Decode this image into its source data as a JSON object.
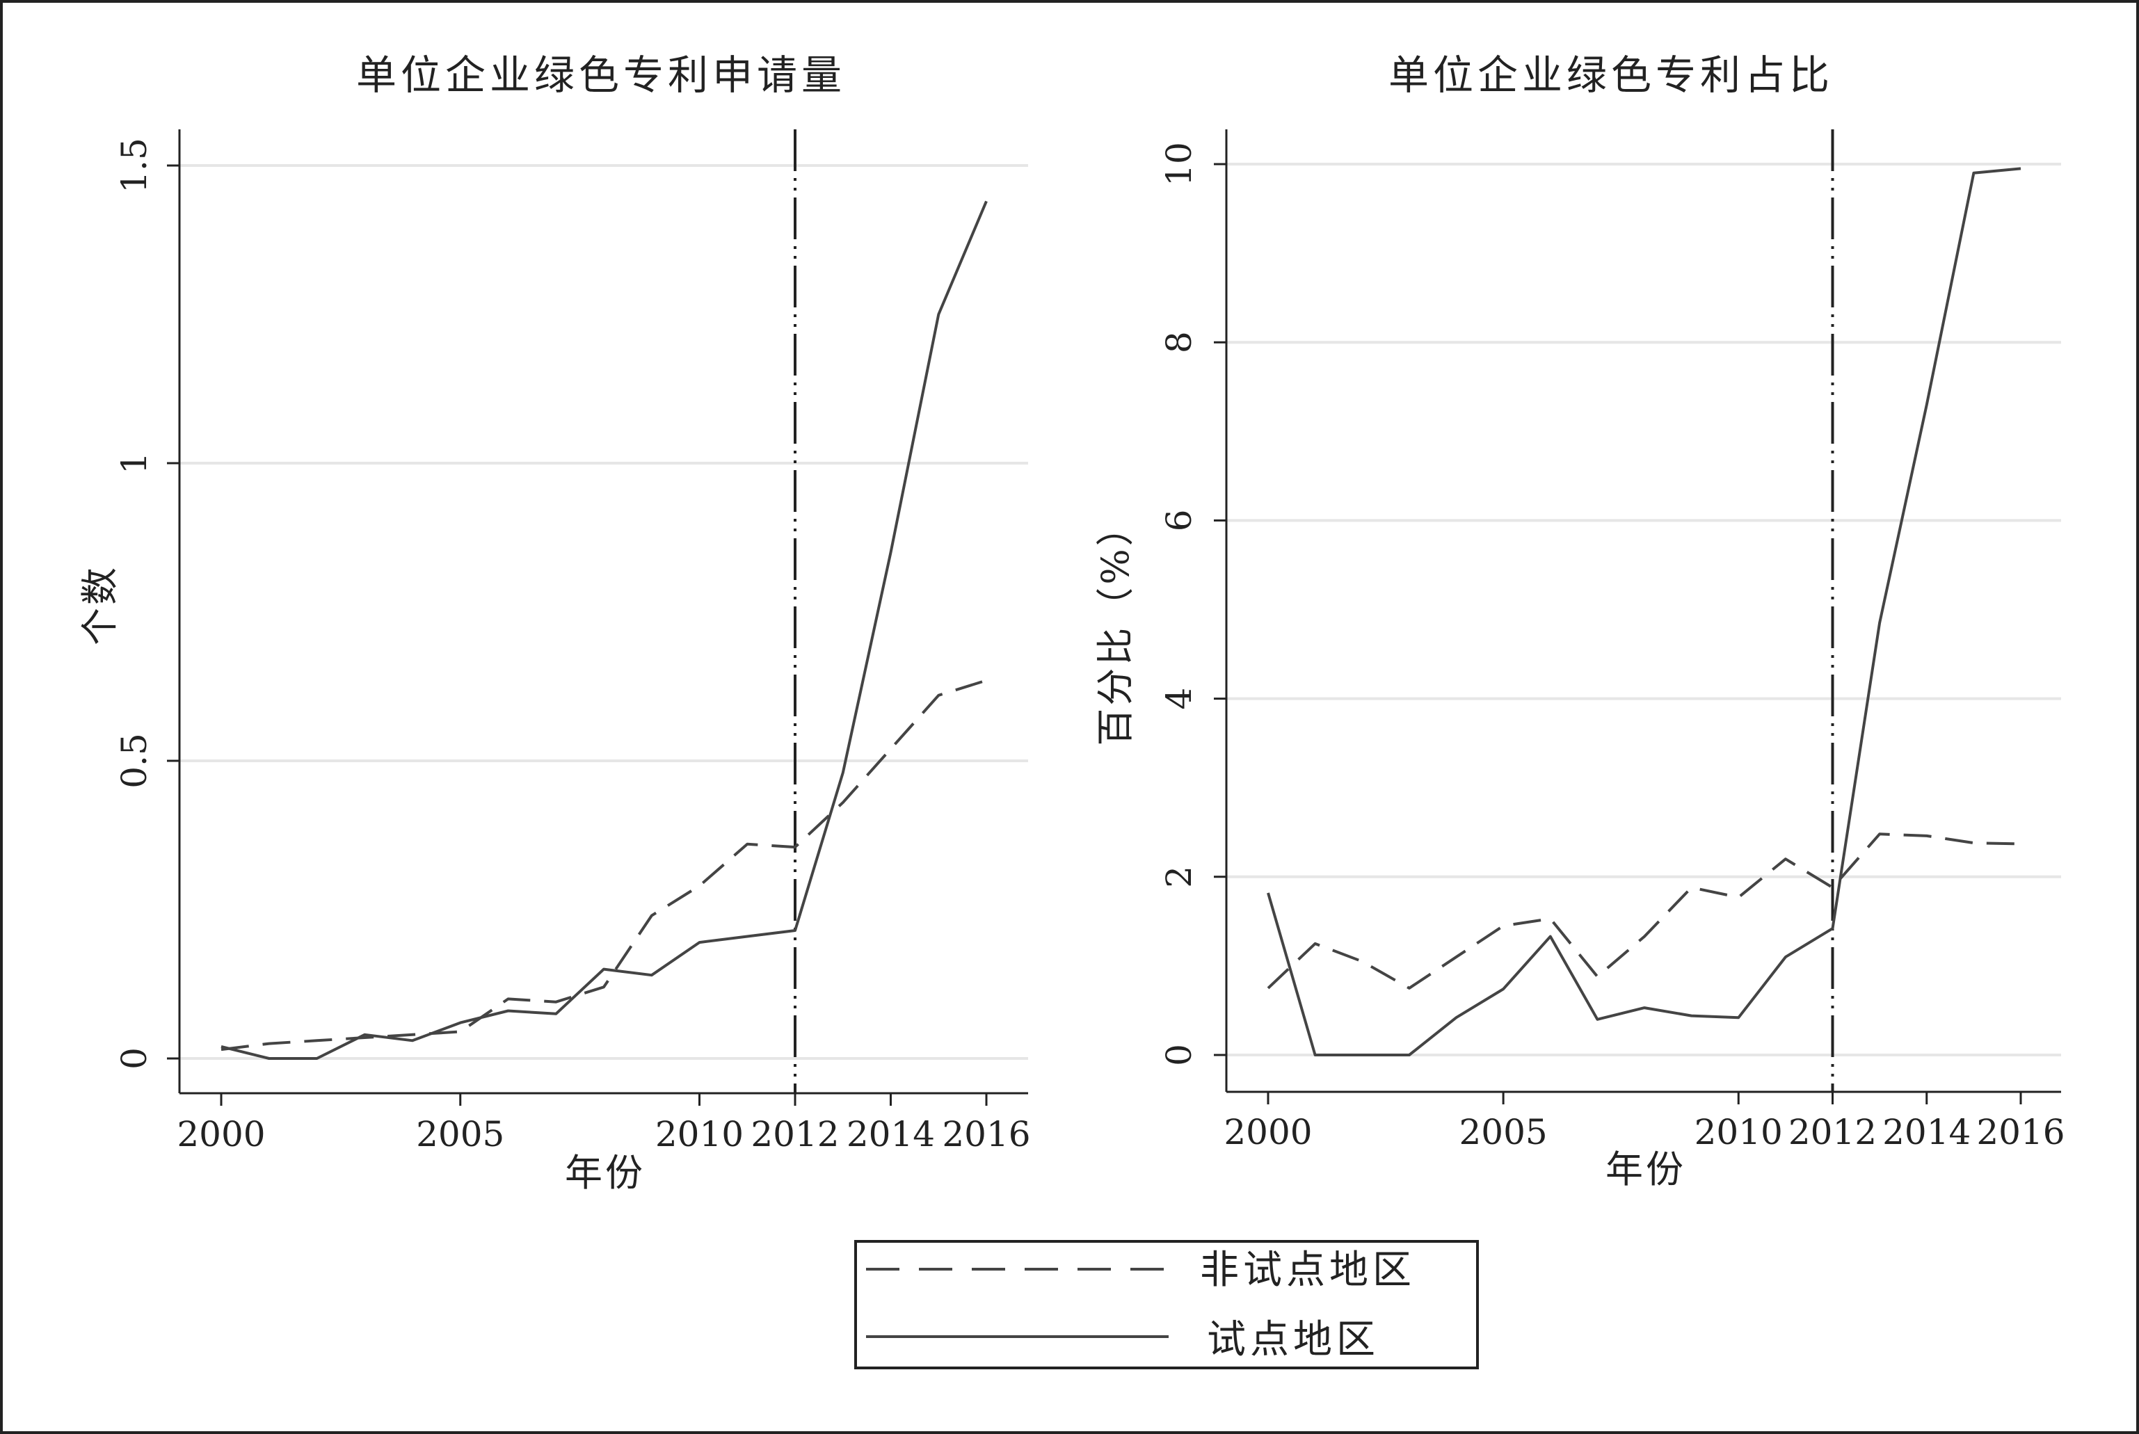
{
  "legend": {
    "items": [
      {
        "label": "非试点地区",
        "style": "dashed"
      },
      {
        "label": "试点地区",
        "style": "solid"
      }
    ]
  },
  "chart_data": [
    {
      "type": "line",
      "title": "单位企业绿色专利申请量",
      "xlabel": "年份",
      "ylabel": "个数",
      "xticks": [
        "2000",
        "2005",
        "2010",
        "2012",
        "2014",
        "2016"
      ],
      "yticks": [
        "0",
        "0.5",
        "1",
        "1.5"
      ],
      "xlim": [
        2000,
        2016
      ],
      "ylim": [
        0,
        1.5
      ],
      "vline": 2012,
      "grid": "horizontal",
      "series": [
        {
          "name": "非试点地区",
          "style": "dashed",
          "x": [
            2000,
            2001,
            2002,
            2003,
            2004,
            2005,
            2006,
            2007,
            2008,
            2009,
            2010,
            2011,
            2012,
            2013,
            2014,
            2015,
            2016
          ],
          "y": [
            0.015,
            0.025,
            0.03,
            0.035,
            0.04,
            0.045,
            0.1,
            0.095,
            0.12,
            0.24,
            0.29,
            0.36,
            0.355,
            0.43,
            0.52,
            0.61,
            0.635
          ]
        },
        {
          "name": "试点地区",
          "style": "solid",
          "x": [
            2000,
            2001,
            2002,
            2003,
            2004,
            2005,
            2006,
            2007,
            2008,
            2009,
            2010,
            2011,
            2012,
            2013,
            2014,
            2015,
            2016
          ],
          "y": [
            0.02,
            0.0,
            0.0,
            0.04,
            0.03,
            0.06,
            0.08,
            0.075,
            0.15,
            0.14,
            0.195,
            0.205,
            0.215,
            0.48,
            0.85,
            1.25,
            1.44
          ]
        }
      ]
    },
    {
      "type": "line",
      "title": "单位企业绿色专利占比",
      "xlabel": "年份",
      "ylabel": "百分比（%）",
      "xticks": [
        "2000",
        "2005",
        "2010",
        "2012",
        "2014",
        "2016"
      ],
      "yticks": [
        "0",
        "2",
        "4",
        "6",
        "8",
        "10"
      ],
      "xlim": [
        2000,
        2016
      ],
      "ylim": [
        0,
        10
      ],
      "vline": 2012,
      "grid": "horizontal",
      "series": [
        {
          "name": "非试点地区",
          "style": "dashed",
          "x": [
            2000,
            2001,
            2002,
            2003,
            2004,
            2005,
            2006,
            2007,
            2008,
            2009,
            2010,
            2011,
            2012,
            2013,
            2014,
            2015,
            2016
          ],
          "y": [
            0.75,
            1.25,
            1.05,
            0.75,
            1.1,
            1.45,
            1.53,
            0.88,
            1.33,
            1.88,
            1.77,
            2.2,
            1.88,
            2.48,
            2.46,
            2.38,
            2.37
          ]
        },
        {
          "name": "试点地区",
          "style": "solid",
          "x": [
            2000,
            2001,
            2002,
            2003,
            2004,
            2005,
            2006,
            2007,
            2008,
            2009,
            2010,
            2011,
            2012,
            2013,
            2014,
            2015,
            2016
          ],
          "y": [
            1.82,
            0.0,
            0.0,
            0.0,
            0.42,
            0.74,
            1.33,
            0.4,
            0.53,
            0.44,
            0.42,
            1.1,
            1.42,
            4.85,
            7.3,
            9.9,
            9.95
          ]
        }
      ]
    }
  ]
}
